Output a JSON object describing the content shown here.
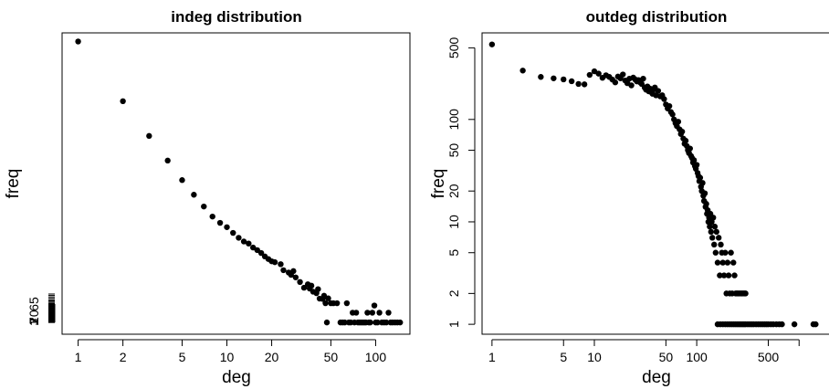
{
  "chart_data": [
    {
      "type": "scatter",
      "title": "indeg distribution",
      "xlabel": "deg",
      "ylabel": "freq",
      "x_scale": "log",
      "y_scale": "linear",
      "xlim": [
        0.78,
        170
      ],
      "ylim": [
        -40,
        1010
      ],
      "x_ticks": [
        {
          "value": 1,
          "label": "1"
        },
        {
          "value": 2,
          "label": "2"
        },
        {
          "value": 5,
          "label": "5"
        },
        {
          "value": 10,
          "label": "10"
        },
        {
          "value": 20,
          "label": "20"
        },
        {
          "value": 50,
          "label": "50"
        },
        {
          "value": 100,
          "label": "100"
        }
      ],
      "y_ticks": [
        {
          "value": 1,
          "label": "1"
        },
        {
          "value": 3,
          "label": "3"
        },
        {
          "value": 7,
          "label": "7"
        },
        {
          "value": 20,
          "label": "20"
        },
        {
          "value": 65,
          "label": "65"
        }
      ],
      "y_rug_values": [
        1,
        2,
        3,
        4,
        5,
        6,
        7,
        8,
        9,
        10,
        11,
        12,
        13,
        14,
        15,
        16,
        17,
        18,
        19,
        20,
        21,
        22,
        23,
        24,
        25,
        26,
        27,
        28,
        29,
        30,
        32,
        34,
        36,
        38,
        40,
        42,
        44,
        46,
        48,
        50,
        52,
        54,
        56,
        58,
        60,
        62,
        65,
        68,
        72,
        76,
        80,
        85,
        90,
        95,
        100
      ],
      "points": [
        [
          1,
          980
        ],
        [
          2,
          772
        ],
        [
          3,
          651
        ],
        [
          4,
          565
        ],
        [
          5,
          497
        ],
        [
          6,
          446
        ],
        [
          7,
          405
        ],
        [
          8,
          370
        ],
        [
          9,
          348
        ],
        [
          10,
          333
        ],
        [
          11,
          313
        ],
        [
          12,
          296
        ],
        [
          13,
          283
        ],
        [
          14,
          276
        ],
        [
          15,
          262
        ],
        [
          16,
          253
        ],
        [
          17,
          243
        ],
        [
          18,
          231
        ],
        [
          19,
          222
        ],
        [
          20,
          214
        ],
        [
          21,
          211
        ],
        [
          23,
          204
        ],
        [
          24,
          183
        ],
        [
          26,
          175
        ],
        [
          27,
          167
        ],
        [
          28,
          180
        ],
        [
          29,
          158
        ],
        [
          31,
          142
        ],
        [
          33,
          122
        ],
        [
          35,
          134
        ],
        [
          36,
          119
        ],
        [
          37,
          129
        ],
        [
          38,
          108
        ],
        [
          40,
          103
        ],
        [
          41,
          117
        ],
        [
          42,
          84
        ],
        [
          44,
          83
        ],
        [
          45,
          94
        ],
        [
          46,
          68
        ],
        [
          47,
          1
        ],
        [
          48,
          85
        ],
        [
          50,
          68
        ],
        [
          52,
          68
        ],
        [
          55,
          68
        ],
        [
          58,
          1
        ],
        [
          60,
          1
        ],
        [
          62,
          1
        ],
        [
          64,
          68
        ],
        [
          66,
          1
        ],
        [
          68,
          1
        ],
        [
          70,
          35
        ],
        [
          72,
          1
        ],
        [
          74,
          35
        ],
        [
          76,
          1
        ],
        [
          78,
          1
        ],
        [
          80,
          1
        ],
        [
          82,
          1
        ],
        [
          84,
          1
        ],
        [
          86,
          1
        ],
        [
          88,
          35
        ],
        [
          90,
          1
        ],
        [
          92,
          1
        ],
        [
          95,
          35
        ],
        [
          98,
          60
        ],
        [
          100,
          1
        ],
        [
          103,
          1
        ],
        [
          106,
          35
        ],
        [
          110,
          1
        ],
        [
          114,
          1
        ],
        [
          118,
          1
        ],
        [
          122,
          35
        ],
        [
          126,
          1
        ],
        [
          130,
          1
        ],
        [
          135,
          1
        ],
        [
          140,
          1
        ],
        [
          146,
          1
        ]
      ]
    },
    {
      "type": "scatter",
      "title": "outdeg distribution",
      "xlabel": "deg",
      "ylabel": "freq",
      "x_scale": "log",
      "y_scale": "log",
      "xlim": [
        0.8,
        2000
      ],
      "ylim": [
        0.8,
        700
      ],
      "x_ticks": [
        {
          "value": 1,
          "label": "1"
        },
        {
          "value": 5,
          "label": "5"
        },
        {
          "value": 10,
          "label": "10"
        },
        {
          "value": 50,
          "label": "50"
        },
        {
          "value": 100,
          "label": "100"
        },
        {
          "value": 500,
          "label": "500"
        },
        {
          "value": 1000,
          "label": ""
        }
      ],
      "y_ticks": [
        {
          "value": 1,
          "label": "1"
        },
        {
          "value": 2,
          "label": "2"
        },
        {
          "value": 5,
          "label": "5"
        },
        {
          "value": 10,
          "label": "10"
        },
        {
          "value": 20,
          "label": "20"
        },
        {
          "value": 50,
          "label": "50"
        },
        {
          "value": 100,
          "label": "100"
        },
        {
          "value": 500,
          "label": "500"
        }
      ],
      "points": [
        [
          1,
          540
        ],
        [
          2,
          300
        ],
        [
          3,
          260
        ],
        [
          4,
          252
        ],
        [
          5,
          246
        ],
        [
          6,
          236
        ],
        [
          7,
          222
        ],
        [
          8,
          220
        ],
        [
          9,
          272
        ],
        [
          10,
          295
        ],
        [
          11,
          280
        ],
        [
          12,
          255
        ],
        [
          13,
          270
        ],
        [
          14,
          260
        ],
        [
          15,
          245
        ],
        [
          16,
          230
        ],
        [
          17,
          262
        ],
        [
          18,
          252
        ],
        [
          19,
          275
        ],
        [
          20,
          240
        ],
        [
          21,
          226
        ],
        [
          22,
          250
        ],
        [
          23,
          215
        ],
        [
          24,
          256
        ],
        [
          25,
          246
        ],
        [
          26,
          235
        ],
        [
          27,
          242
        ],
        [
          28,
          230
        ],
        [
          29,
          222
        ],
        [
          30,
          250
        ],
        [
          31,
          205
        ],
        [
          32,
          195
        ],
        [
          33,
          210
        ],
        [
          34,
          188
        ],
        [
          35,
          200
        ],
        [
          36,
          185
        ],
        [
          37,
          178
        ],
        [
          38,
          196
        ],
        [
          39,
          205
        ],
        [
          40,
          172
        ],
        [
          42,
          190
        ],
        [
          44,
          168
        ],
        [
          46,
          172
        ],
        [
          48,
          158
        ],
        [
          50,
          140
        ],
        [
          52,
          128
        ],
        [
          54,
          135
        ],
        [
          56,
          118
        ],
        [
          58,
          112
        ],
        [
          60,
          100
        ],
        [
          62,
          92
        ],
        [
          64,
          86
        ],
        [
          66,
          95
        ],
        [
          68,
          80
        ],
        [
          70,
          72
        ],
        [
          72,
          76
        ],
        [
          74,
          65
        ],
        [
          76,
          58
        ],
        [
          78,
          62
        ],
        [
          80,
          55
        ],
        [
          82,
          50
        ],
        [
          84,
          47
        ],
        [
          86,
          52
        ],
        [
          88,
          44
        ],
        [
          90,
          42
        ],
        [
          92,
          38
        ],
        [
          94,
          40
        ],
        [
          96,
          35
        ],
        [
          98,
          33
        ],
        [
          100,
          36
        ],
        [
          102,
          30
        ],
        [
          104,
          28
        ],
        [
          106,
          25
        ],
        [
          108,
          27
        ],
        [
          110,
          22
        ],
        [
          112,
          20
        ],
        [
          114,
          24
        ],
        [
          116,
          18
        ],
        [
          118,
          16
        ],
        [
          120,
          19
        ],
        [
          122,
          14
        ],
        [
          124,
          15
        ],
        [
          126,
          12
        ],
        [
          128,
          13
        ],
        [
          130,
          10
        ],
        [
          132,
          11
        ],
        [
          134,
          9
        ],
        [
          136,
          12
        ],
        [
          138,
          8
        ],
        [
          140,
          10
        ],
        [
          142,
          7
        ],
        [
          145,
          11
        ],
        [
          148,
          6
        ],
        [
          150,
          9
        ],
        [
          153,
          5
        ],
        [
          156,
          8
        ],
        [
          160,
          4
        ],
        [
          164,
          7
        ],
        [
          168,
          3
        ],
        [
          172,
          6
        ],
        [
          176,
          5
        ],
        [
          180,
          4
        ],
        [
          185,
          3
        ],
        [
          190,
          5
        ],
        [
          195,
          2
        ],
        [
          200,
          4
        ],
        [
          205,
          3
        ],
        [
          210,
          2
        ],
        [
          216,
          5
        ],
        [
          222,
          2
        ],
        [
          228,
          4
        ],
        [
          234,
          3
        ],
        [
          240,
          2
        ],
        [
          246,
          2
        ],
        [
          252,
          2
        ],
        [
          260,
          2
        ],
        [
          268,
          2
        ],
        [
          276,
          2
        ],
        [
          284,
          2
        ],
        [
          292,
          2
        ],
        [
          300,
          2
        ],
        [
          160,
          1
        ],
        [
          170,
          1
        ],
        [
          180,
          1
        ],
        [
          190,
          1
        ],
        [
          200,
          1
        ],
        [
          210,
          1
        ],
        [
          220,
          1
        ],
        [
          230,
          1
        ],
        [
          240,
          1
        ],
        [
          250,
          1
        ],
        [
          260,
          1
        ],
        [
          270,
          1
        ],
        [
          280,
          1
        ],
        [
          290,
          1
        ],
        [
          300,
          1
        ],
        [
          315,
          1
        ],
        [
          330,
          1
        ],
        [
          345,
          1
        ],
        [
          360,
          1
        ],
        [
          380,
          1
        ],
        [
          400,
          1
        ],
        [
          420,
          1
        ],
        [
          440,
          1
        ],
        [
          460,
          1
        ],
        [
          480,
          1
        ],
        [
          500,
          1
        ],
        [
          530,
          1
        ],
        [
          560,
          1
        ],
        [
          600,
          1
        ],
        [
          640,
          1
        ],
        [
          680,
          1
        ],
        [
          900,
          1
        ],
        [
          1380,
          1
        ],
        [
          1450,
          1
        ]
      ]
    }
  ]
}
